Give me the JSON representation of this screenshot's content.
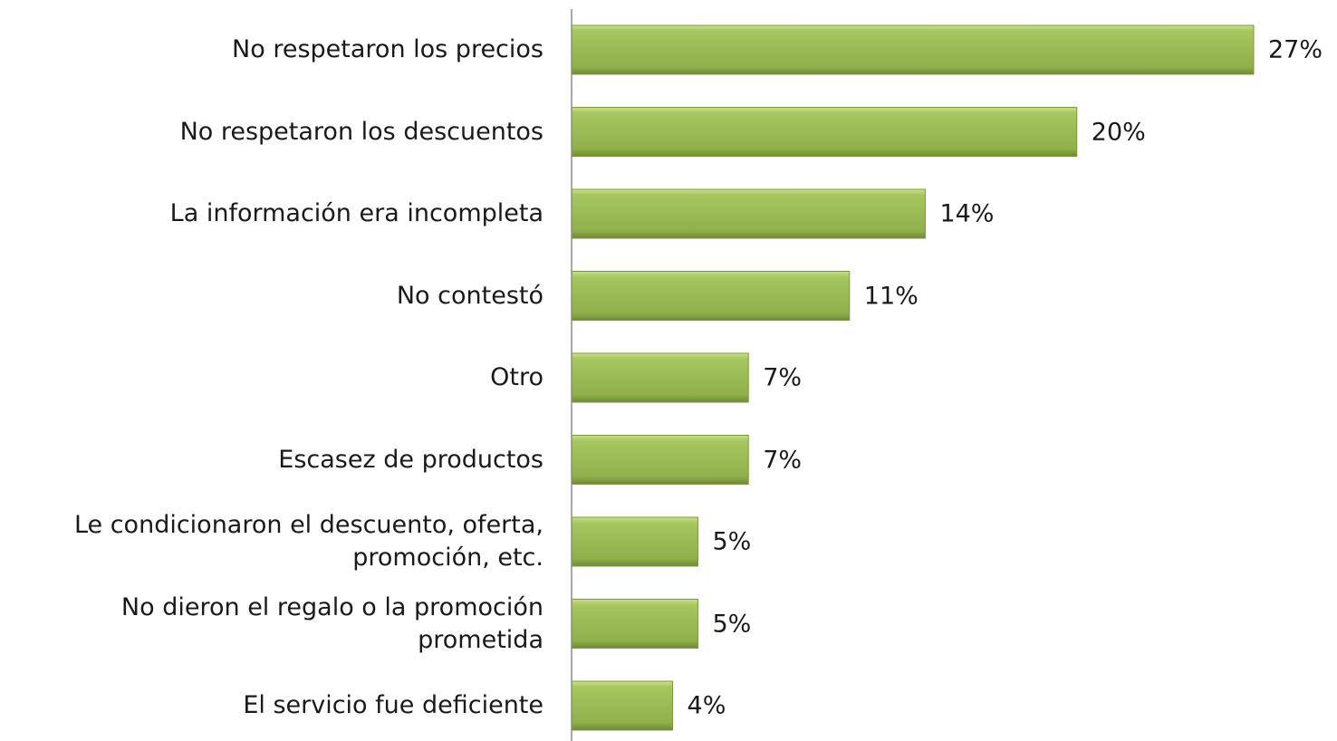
{
  "chart_data": {
    "type": "bar",
    "orientation": "horizontal",
    "categories": [
      "No respetaron los precios",
      "No respetaron los descuentos",
      "La información era incompleta",
      "No contestó",
      "Otro",
      "Escasez de productos",
      "Le condicionaron el descuento, oferta,\npromoción, etc.",
      "No dieron el regalo o la promoción\nprometida",
      "El servicio fue deficiente"
    ],
    "values": [
      27,
      20,
      14,
      11,
      7,
      7,
      5,
      5,
      4
    ],
    "value_labels": [
      "27%",
      "20%",
      "14%",
      "11%",
      "7%",
      "7%",
      "5%",
      "5%",
      "4%"
    ],
    "color": "#9bbb59"
  }
}
